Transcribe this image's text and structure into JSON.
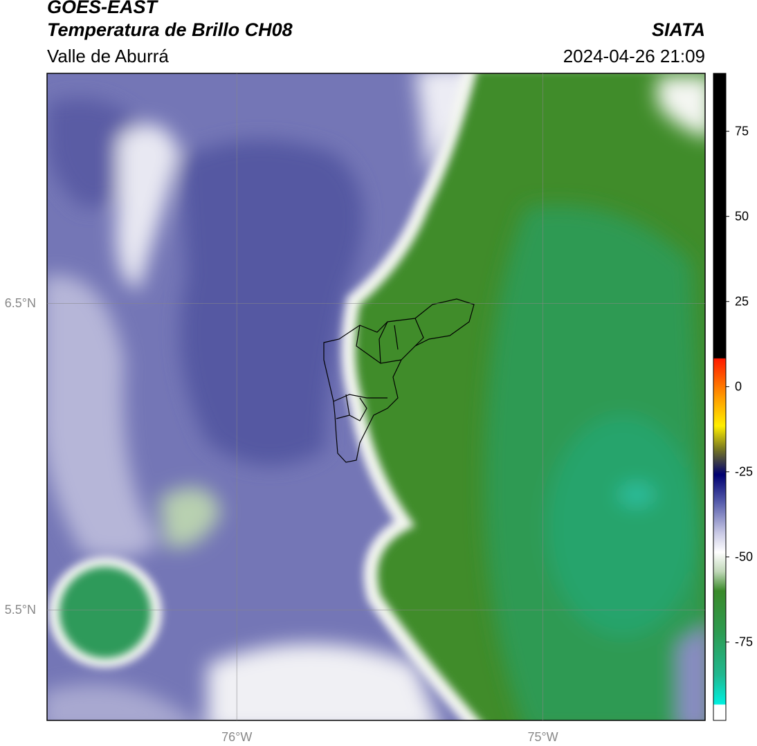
{
  "header": {
    "title": "GOES-EAST",
    "subtitle": "Temperatura de Brillo CH08",
    "region": "Valle de Aburrá",
    "source": "SIATA",
    "datetime": "2024-04-26 21:09"
  },
  "map": {
    "lon_extent": [
      -76.62,
      -74.47
    ],
    "lat_extent": [
      5.14,
      7.25
    ],
    "lat_ticks": [
      {
        "value": 6.5,
        "label": "6.5°N"
      },
      {
        "value": 5.5,
        "label": "5.5°N"
      }
    ],
    "lon_ticks": [
      {
        "value": -76,
        "label": "76°W"
      },
      {
        "value": -75,
        "label": "75°W"
      }
    ]
  },
  "colorbar": {
    "range": [
      -98,
      92
    ],
    "ticks": [
      75,
      50,
      25,
      0,
      -25,
      -50,
      -75
    ]
  }
}
